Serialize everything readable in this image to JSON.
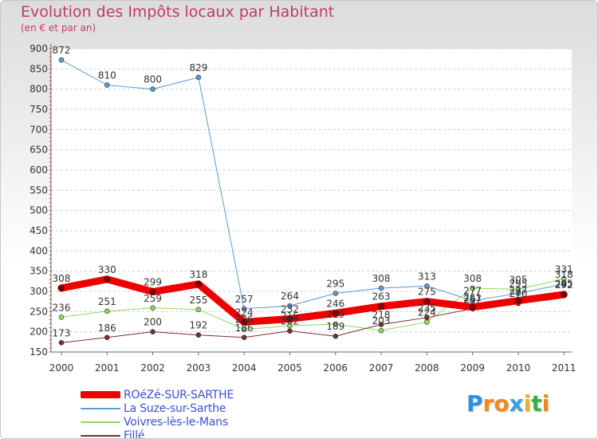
{
  "title": "Evolution des Impôts locaux par Habitant",
  "subtitle": "(en € et par an)",
  "logo": {
    "text": "Proxiti",
    "letters": [
      {
        "ch": "P",
        "color": "#2f8fd8"
      },
      {
        "ch": "r",
        "color": "#f08a1c"
      },
      {
        "ch": "o",
        "color": "#f08a1c"
      },
      {
        "ch": "x",
        "color": "#3aa0e0"
      },
      {
        "ch": "i",
        "color": "#f0b020"
      },
      {
        "ch": "t",
        "color": "#38b04a"
      },
      {
        "ch": "i",
        "color": "#f08a1c"
      }
    ]
  },
  "chart_data": {
    "type": "line",
    "title": "Evolution des Impôts locaux par Habitant",
    "subtitle": "(en € et par an)",
    "xlabel": "",
    "ylabel": "",
    "x": [
      "2000",
      "2001",
      "2002",
      "2003",
      "2004",
      "2005",
      "2006",
      "2007",
      "2008",
      "2009",
      "2010",
      "2011"
    ],
    "ylim": [
      150,
      900
    ],
    "yticks": [
      150,
      200,
      250,
      300,
      350,
      400,
      450,
      500,
      550,
      600,
      650,
      700,
      750,
      800,
      850,
      900
    ],
    "grid": "horizontal dashed",
    "legend_position": "bottom-left",
    "series": [
      {
        "name": "La Suze-sur-Sarthe",
        "color": "#5a9bd0",
        "width": 1,
        "values": [
          872,
          810,
          800,
          829,
          257,
          264,
          295,
          308,
          313,
          277,
          295,
          318
        ],
        "labels": [
          "872",
          "810",
          "800",
          "829",
          "257",
          "264",
          "295",
          "308",
          "313",
          "277",
          "295",
          "318"
        ]
      },
      {
        "name": "Voivres-lès-le-Mans",
        "color": "#90d860",
        "width": 1,
        "values": [
          236,
          251,
          259,
          255,
          206,
          215,
          219,
          203,
          224,
          308,
          305,
          331
        ],
        "labels": [
          "236",
          "251",
          "259",
          "255",
          "206",
          "215",
          "219",
          "203",
          "224",
          "308",
          "305",
          "331"
        ]
      },
      {
        "name": "Fillé",
        "color": "#7a2f2f",
        "width": 1,
        "values": [
          173,
          186,
          200,
          192,
          186,
          202,
          189,
          218,
          235,
          257,
          270,
          295
        ],
        "labels": [
          "173",
          "186",
          "200",
          "192",
          "186",
          "202",
          "189",
          "218",
          "235",
          "257",
          "270",
          "295"
        ]
      },
      {
        "name": "ROéZé-SUR-SARTHE",
        "color": "#ee0000",
        "width": 9,
        "values": [
          308,
          330,
          299,
          318,
          224,
          232,
          246,
          263,
          275,
          261,
          277,
          292
        ],
        "labels": [
          "308",
          "330",
          "299",
          "318",
          "224",
          "232",
          "246",
          "263",
          "275",
          "261",
          "277",
          "292"
        ]
      }
    ]
  }
}
